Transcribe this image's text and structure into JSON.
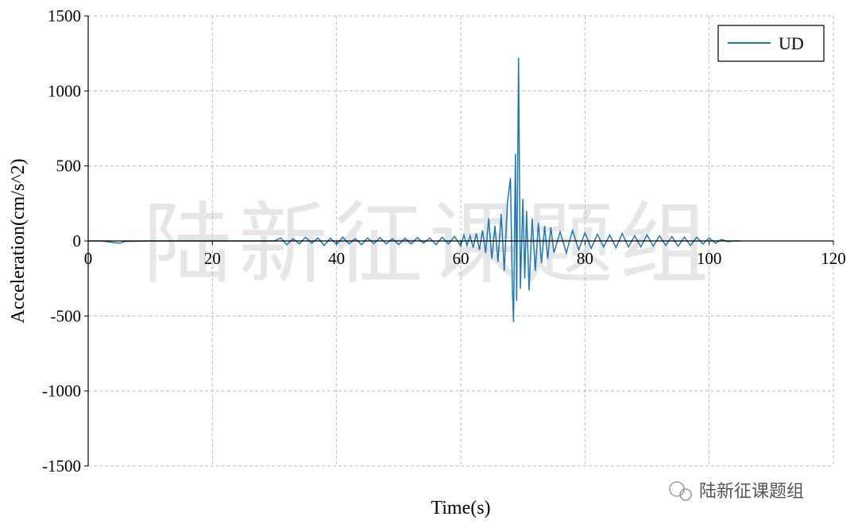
{
  "chart_data": {
    "type": "line",
    "xlabel": "Time(s)",
    "ylabel": "Acceleration(cm/s^2)",
    "watermark": "陆新征课题组",
    "source": "陆新征课题组",
    "x": [
      0,
      2,
      4,
      5,
      6,
      10,
      20,
      30,
      31,
      32,
      33,
      34,
      35,
      36,
      37,
      38,
      39,
      40,
      41,
      42,
      43,
      44,
      45,
      46,
      47,
      48,
      49,
      50,
      51,
      52,
      53,
      54,
      55,
      56,
      57,
      58,
      59,
      60,
      60.5,
      61,
      61.5,
      62,
      62.5,
      63,
      63.5,
      64,
      64.5,
      65,
      65.5,
      66,
      66.5,
      67,
      67.5,
      68,
      68.3,
      68.5,
      68.8,
      69,
      69.3,
      69.6,
      70,
      70.3,
      70.6,
      71,
      71.5,
      72,
      72.5,
      73,
      73.5,
      74,
      74.5,
      75,
      76,
      77,
      78,
      79,
      80,
      81,
      82,
      83,
      84,
      85,
      86,
      87,
      88,
      89,
      90,
      91,
      92,
      93,
      94,
      95,
      96,
      97,
      98,
      99,
      100,
      101,
      102,
      103,
      104,
      105
    ],
    "series": [
      {
        "name": "UD",
        "color": "#1f77b4",
        "values": [
          0,
          0,
          -10,
          -15,
          -3,
          0,
          0,
          0,
          20,
          -25,
          15,
          -20,
          25,
          -15,
          20,
          -30,
          18,
          -22,
          25,
          -20,
          15,
          -25,
          20,
          -18,
          22,
          -20,
          15,
          -25,
          18,
          -20,
          22,
          -15,
          20,
          -25,
          25,
          -20,
          30,
          -35,
          40,
          -30,
          35,
          -45,
          50,
          -60,
          70,
          -80,
          150,
          -120,
          100,
          -140,
          180,
          -200,
          250,
          420,
          -300,
          -540,
          580,
          -400,
          1220,
          -320,
          280,
          -250,
          200,
          -330,
          150,
          -200,
          120,
          -150,
          100,
          -120,
          90,
          -80,
          60,
          -80,
          70,
          -60,
          55,
          -50,
          45,
          -40,
          40,
          -45,
          50,
          -40,
          35,
          -40,
          40,
          -35,
          35,
          -30,
          30,
          -35,
          25,
          -30,
          25,
          -20,
          20,
          -15,
          10,
          -5,
          0,
          0
        ]
      }
    ],
    "xlim": [
      0,
      120
    ],
    "ylim": [
      -1500,
      1500
    ],
    "xticks": [
      0,
      20,
      40,
      60,
      80,
      100,
      120
    ],
    "yticks": [
      -1500,
      -1000,
      -500,
      0,
      500,
      1000,
      1500
    ],
    "grid": true,
    "legend": "upper right"
  }
}
